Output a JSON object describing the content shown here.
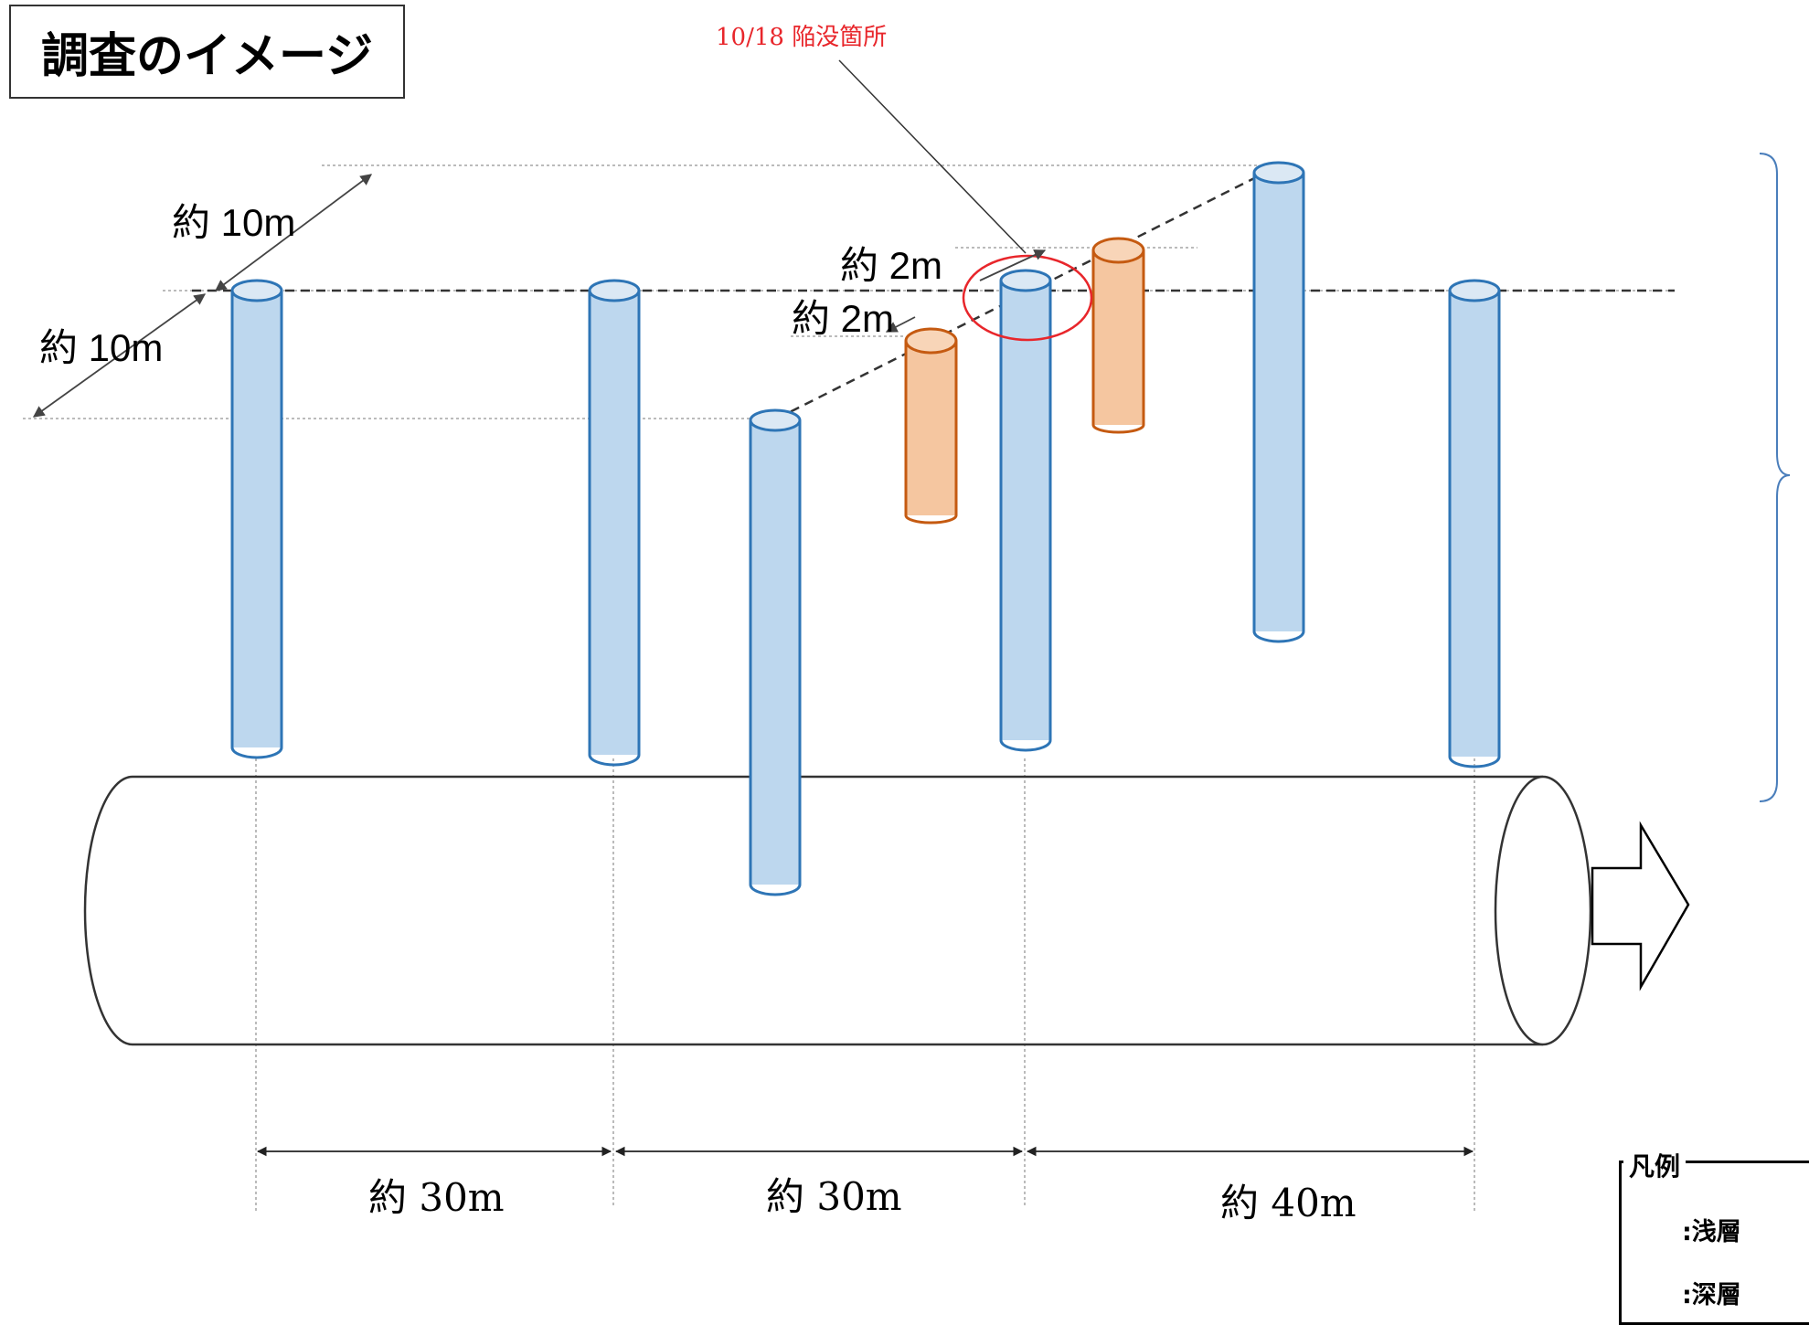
{
  "title": "調査のイメージ",
  "callout": {
    "text": "10/18 陥没箇所",
    "color": "#e8262b"
  },
  "dimensions": {
    "top_left_upper": "約 10m",
    "top_left_lower": "約 10m",
    "upper_offset": "約 2m",
    "lower_offset": "約 2m",
    "bottom_1": "約 30m",
    "bottom_2": "約 30m",
    "bottom_3": "約 40m"
  },
  "legend": {
    "title": "凡例",
    "items": [
      {
        "label": ":浅層",
        "icon": "orange-cylinder-icon",
        "color": "#f5c6a0"
      },
      {
        "label": ":深層",
        "icon": "blue-cylinder-icon",
        "color": "#bdd7ee"
      }
    ]
  },
  "colors": {
    "deep_fill": "#bdd7ee",
    "deep_stroke": "#2e75b6",
    "shallow_fill": "#f5c6a0",
    "shallow_stroke": "#c55a11"
  }
}
